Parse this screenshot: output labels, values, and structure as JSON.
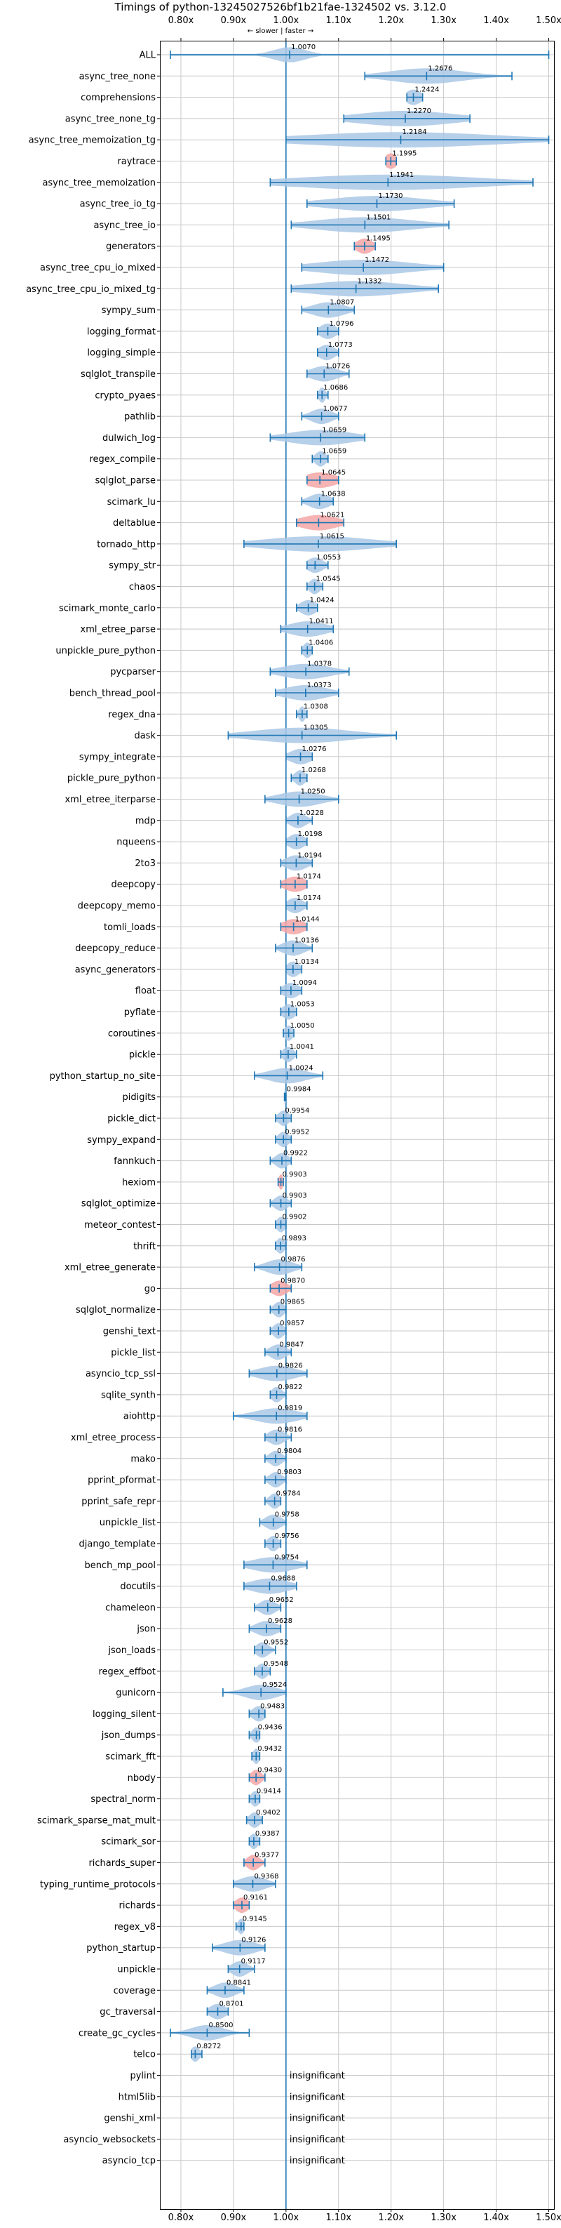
{
  "chart_data": {
    "type": "violin",
    "title": "Timings of python-13245027526bf1b21fae-1324502 vs. 3.12.0",
    "direction_label": "← slower | faster →",
    "xlabel": "",
    "ylabel": "",
    "xlim": [
      0.76,
      1.51
    ],
    "x_ticks": [
      0.8,
      0.9,
      1.0,
      1.1,
      1.2,
      1.3,
      1.4,
      1.5
    ],
    "x_tick_labels": [
      "0.80x",
      "0.90x",
      "1.00x",
      "1.10x",
      "1.20x",
      "1.30x",
      "1.40x",
      "1.50x"
    ],
    "grid": true,
    "insignificant_label": "insignificant",
    "colors": {
      "violin": "#aac8e6",
      "highlight": "#f4a6a6",
      "whisker": "#1f77b4",
      "reference": "#1f77b4"
    },
    "benchmarks": [
      {
        "name": "ALL",
        "mean": 1.007,
        "min": 0.78,
        "max": 1.5,
        "spread": 0.03,
        "label": "1.0070"
      },
      {
        "name": "async_tree_none",
        "mean": 1.2676,
        "min": 1.15,
        "max": 1.43,
        "spread": 0.07,
        "label": "1.2676"
      },
      {
        "name": "comprehensions",
        "mean": 1.2424,
        "min": 1.23,
        "max": 1.26,
        "spread": 0.015,
        "label": "1.2424"
      },
      {
        "name": "async_tree_none_tg",
        "mean": 1.227,
        "min": 1.11,
        "max": 1.35,
        "spread": 0.09,
        "label": "1.2270"
      },
      {
        "name": "async_tree_memoization_tg",
        "mean": 1.2184,
        "min": 1.0,
        "max": 1.5,
        "spread": 0.18,
        "label": "1.2184"
      },
      {
        "name": "raytrace",
        "mean": 1.1995,
        "min": 1.19,
        "max": 1.21,
        "spread": 0.012,
        "label": "1.1995",
        "highlight": true
      },
      {
        "name": "async_tree_memoization",
        "mean": 1.1941,
        "min": 0.97,
        "max": 1.47,
        "spread": 0.17,
        "label": "1.1941"
      },
      {
        "name": "async_tree_io_tg",
        "mean": 1.173,
        "min": 1.04,
        "max": 1.32,
        "spread": 0.09,
        "label": "1.1730"
      },
      {
        "name": "async_tree_io",
        "mean": 1.1501,
        "min": 1.01,
        "max": 1.31,
        "spread": 0.09,
        "label": "1.1501"
      },
      {
        "name": "generators",
        "mean": 1.1495,
        "min": 1.13,
        "max": 1.17,
        "spread": 0.015,
        "label": "1.1495",
        "highlight": true
      },
      {
        "name": "async_tree_cpu_io_mixed",
        "mean": 1.1472,
        "min": 1.03,
        "max": 1.3,
        "spread": 0.09,
        "label": "1.1472"
      },
      {
        "name": "async_tree_cpu_io_mixed_tg",
        "mean": 1.1332,
        "min": 1.01,
        "max": 1.29,
        "spread": 0.09,
        "label": "1.1332"
      },
      {
        "name": "sympy_sum",
        "mean": 1.0807,
        "min": 1.03,
        "max": 1.13,
        "spread": 0.03,
        "label": "1.0807"
      },
      {
        "name": "logging_format",
        "mean": 1.0796,
        "min": 1.06,
        "max": 1.1,
        "spread": 0.015,
        "label": "1.0796"
      },
      {
        "name": "logging_simple",
        "mean": 1.0773,
        "min": 1.06,
        "max": 1.1,
        "spread": 0.015,
        "label": "1.0773"
      },
      {
        "name": "sqlglot_transpile",
        "mean": 1.0726,
        "min": 1.04,
        "max": 1.12,
        "spread": 0.025,
        "label": "1.0726"
      },
      {
        "name": "crypto_pyaes",
        "mean": 1.0686,
        "min": 1.06,
        "max": 1.08,
        "spread": 0.006,
        "label": "1.0686"
      },
      {
        "name": "pathlib",
        "mean": 1.0677,
        "min": 1.03,
        "max": 1.1,
        "spread": 0.02,
        "label": "1.0677"
      },
      {
        "name": "dulwich_log",
        "mean": 1.0659,
        "min": 0.97,
        "max": 1.15,
        "spread": 0.06,
        "label": "1.0659"
      },
      {
        "name": "regex_compile",
        "mean": 1.0659,
        "min": 1.05,
        "max": 1.08,
        "spread": 0.01,
        "label": "1.0659"
      },
      {
        "name": "sqlglot_parse",
        "mean": 1.0645,
        "min": 1.04,
        "max": 1.1,
        "spread": 0.03,
        "label": "1.0645",
        "highlight": true
      },
      {
        "name": "scimark_lu",
        "mean": 1.0638,
        "min": 1.03,
        "max": 1.09,
        "spread": 0.02,
        "label": "1.0638"
      },
      {
        "name": "deltablue",
        "mean": 1.0621,
        "min": 1.02,
        "max": 1.11,
        "spread": 0.035,
        "label": "1.0621",
        "highlight": true
      },
      {
        "name": "tornado_http",
        "mean": 1.0615,
        "min": 0.92,
        "max": 1.21,
        "spread": 0.1,
        "label": "1.0615"
      },
      {
        "name": "sympy_str",
        "mean": 1.0553,
        "min": 1.04,
        "max": 1.08,
        "spread": 0.015,
        "label": "1.0553"
      },
      {
        "name": "chaos",
        "mean": 1.0545,
        "min": 1.04,
        "max": 1.07,
        "spread": 0.01,
        "label": "1.0545"
      },
      {
        "name": "scimark_monte_carlo",
        "mean": 1.0424,
        "min": 1.02,
        "max": 1.06,
        "spread": 0.015,
        "label": "1.0424"
      },
      {
        "name": "xml_etree_parse",
        "mean": 1.0411,
        "min": 0.99,
        "max": 1.09,
        "spread": 0.035,
        "label": "1.0411"
      },
      {
        "name": "unpickle_pure_python",
        "mean": 1.0406,
        "min": 1.03,
        "max": 1.05,
        "spread": 0.008,
        "label": "1.0406"
      },
      {
        "name": "pycparser",
        "mean": 1.0378,
        "min": 0.97,
        "max": 1.12,
        "spread": 0.045,
        "label": "1.0378"
      },
      {
        "name": "bench_thread_pool",
        "mean": 1.0373,
        "min": 0.98,
        "max": 1.1,
        "spread": 0.04,
        "label": "1.0373"
      },
      {
        "name": "regex_dna",
        "mean": 1.0308,
        "min": 1.02,
        "max": 1.04,
        "spread": 0.006,
        "label": "1.0308"
      },
      {
        "name": "dask",
        "mean": 1.0305,
        "min": 0.89,
        "max": 1.21,
        "spread": 0.09,
        "label": "1.0305"
      },
      {
        "name": "sympy_integrate",
        "mean": 1.0276,
        "min": 1.0,
        "max": 1.05,
        "spread": 0.02,
        "label": "1.0276"
      },
      {
        "name": "pickle_pure_python",
        "mean": 1.0268,
        "min": 1.01,
        "max": 1.04,
        "spread": 0.01,
        "label": "1.0268"
      },
      {
        "name": "xml_etree_iterparse",
        "mean": 1.025,
        "min": 0.96,
        "max": 1.1,
        "spread": 0.04,
        "label": "1.0250"
      },
      {
        "name": "mdp",
        "mean": 1.0228,
        "min": 1.0,
        "max": 1.05,
        "spread": 0.015,
        "label": "1.0228"
      },
      {
        "name": "nqueens",
        "mean": 1.0198,
        "min": 1.0,
        "max": 1.04,
        "spread": 0.015,
        "label": "1.0198"
      },
      {
        "name": "2to3",
        "mean": 1.0194,
        "min": 0.99,
        "max": 1.05,
        "spread": 0.02,
        "label": "1.0194"
      },
      {
        "name": "deepcopy",
        "mean": 1.0174,
        "min": 0.99,
        "max": 1.04,
        "spread": 0.02,
        "label": "1.0174",
        "highlight": true
      },
      {
        "name": "deepcopy_memo",
        "mean": 1.0174,
        "min": 1.0,
        "max": 1.04,
        "spread": 0.015,
        "label": "1.0174"
      },
      {
        "name": "tomli_loads",
        "mean": 1.0144,
        "min": 0.99,
        "max": 1.04,
        "spread": 0.02,
        "label": "1.0144",
        "highlight": true
      },
      {
        "name": "deepcopy_reduce",
        "mean": 1.0136,
        "min": 0.98,
        "max": 1.05,
        "spread": 0.02,
        "label": "1.0136"
      },
      {
        "name": "async_generators",
        "mean": 1.0134,
        "min": 1.0,
        "max": 1.03,
        "spread": 0.012,
        "label": "1.0134"
      },
      {
        "name": "float",
        "mean": 1.0094,
        "min": 0.99,
        "max": 1.03,
        "spread": 0.015,
        "label": "1.0094"
      },
      {
        "name": "pyflate",
        "mean": 1.0053,
        "min": 0.99,
        "max": 1.02,
        "spread": 0.012,
        "label": "1.0053"
      },
      {
        "name": "coroutines",
        "mean": 1.005,
        "min": 0.995,
        "max": 1.015,
        "spread": 0.008,
        "label": "1.0050"
      },
      {
        "name": "pickle",
        "mean": 1.0041,
        "min": 0.99,
        "max": 1.02,
        "spread": 0.01,
        "label": "1.0041"
      },
      {
        "name": "python_startup_no_site",
        "mean": 1.0024,
        "min": 0.94,
        "max": 1.07,
        "spread": 0.035,
        "label": "1.0024"
      },
      {
        "name": "pidigits",
        "mean": 0.9984,
        "min": 0.997,
        "max": 1.0,
        "spread": 0.002,
        "label": "0.9984"
      },
      {
        "name": "pickle_dict",
        "mean": 0.9954,
        "min": 0.98,
        "max": 1.01,
        "spread": 0.01,
        "label": "0.9954"
      },
      {
        "name": "sympy_expand",
        "mean": 0.9952,
        "min": 0.98,
        "max": 1.01,
        "spread": 0.01,
        "label": "0.9952"
      },
      {
        "name": "fannkuch",
        "mean": 0.9922,
        "min": 0.97,
        "max": 1.01,
        "spread": 0.012,
        "label": "0.9922"
      },
      {
        "name": "hexiom",
        "mean": 0.9903,
        "min": 0.985,
        "max": 0.995,
        "spread": 0.004,
        "label": "0.9903",
        "highlight": true
      },
      {
        "name": "sqlglot_optimize",
        "mean": 0.9903,
        "min": 0.97,
        "max": 1.01,
        "spread": 0.012,
        "label": "0.9903"
      },
      {
        "name": "meteor_contest",
        "mean": 0.9902,
        "min": 0.98,
        "max": 1.0,
        "spread": 0.008,
        "label": "0.9902"
      },
      {
        "name": "thrift",
        "mean": 0.9893,
        "min": 0.98,
        "max": 1.0,
        "spread": 0.008,
        "label": "0.9893"
      },
      {
        "name": "xml_etree_generate",
        "mean": 0.9876,
        "min": 0.94,
        "max": 1.03,
        "spread": 0.025,
        "label": "0.9876"
      },
      {
        "name": "go",
        "mean": 0.987,
        "min": 0.97,
        "max": 1.01,
        "spread": 0.015,
        "label": "0.9870",
        "highlight": true
      },
      {
        "name": "sqlglot_normalize",
        "mean": 0.9865,
        "min": 0.97,
        "max": 1.0,
        "spread": 0.01,
        "label": "0.9865"
      },
      {
        "name": "genshi_text",
        "mean": 0.9857,
        "min": 0.97,
        "max": 1.0,
        "spread": 0.01,
        "label": "0.9857"
      },
      {
        "name": "pickle_list",
        "mean": 0.9847,
        "min": 0.96,
        "max": 1.01,
        "spread": 0.015,
        "label": "0.9847"
      },
      {
        "name": "asyncio_tcp_ssl",
        "mean": 0.9826,
        "min": 0.93,
        "max": 1.04,
        "spread": 0.035,
        "label": "0.9826"
      },
      {
        "name": "sqlite_synth",
        "mean": 0.9822,
        "min": 0.97,
        "max": 1.0,
        "spread": 0.01,
        "label": "0.9822"
      },
      {
        "name": "aiohttp",
        "mean": 0.9819,
        "min": 0.9,
        "max": 1.04,
        "spread": 0.04,
        "label": "0.9819"
      },
      {
        "name": "xml_etree_process",
        "mean": 0.9816,
        "min": 0.96,
        "max": 1.01,
        "spread": 0.015,
        "label": "0.9816"
      },
      {
        "name": "mako",
        "mean": 0.9804,
        "min": 0.96,
        "max": 1.0,
        "spread": 0.012,
        "label": "0.9804"
      },
      {
        "name": "pprint_pformat",
        "mean": 0.9803,
        "min": 0.96,
        "max": 1.0,
        "spread": 0.012,
        "label": "0.9803"
      },
      {
        "name": "pprint_safe_repr",
        "mean": 0.9784,
        "min": 0.96,
        "max": 0.99,
        "spread": 0.01,
        "label": "0.9784"
      },
      {
        "name": "unpickle_list",
        "mean": 0.9758,
        "min": 0.95,
        "max": 1.0,
        "spread": 0.015,
        "label": "0.9758"
      },
      {
        "name": "django_template",
        "mean": 0.9756,
        "min": 0.96,
        "max": 0.99,
        "spread": 0.01,
        "label": "0.9756"
      },
      {
        "name": "bench_mp_pool",
        "mean": 0.9754,
        "min": 0.92,
        "max": 1.04,
        "spread": 0.04,
        "label": "0.9754"
      },
      {
        "name": "docutils",
        "mean": 0.9688,
        "min": 0.92,
        "max": 1.02,
        "spread": 0.035,
        "label": "0.9688"
      },
      {
        "name": "chameleon",
        "mean": 0.9652,
        "min": 0.94,
        "max": 0.99,
        "spread": 0.015,
        "label": "0.9652"
      },
      {
        "name": "json",
        "mean": 0.9628,
        "min": 0.93,
        "max": 0.99,
        "spread": 0.02,
        "label": "0.9628"
      },
      {
        "name": "json_loads",
        "mean": 0.9552,
        "min": 0.94,
        "max": 0.98,
        "spread": 0.012,
        "label": "0.9552"
      },
      {
        "name": "regex_effbot",
        "mean": 0.9548,
        "min": 0.94,
        "max": 0.97,
        "spread": 0.01,
        "label": "0.9548"
      },
      {
        "name": "gunicorn",
        "mean": 0.9524,
        "min": 0.88,
        "max": 1.0,
        "spread": 0.03,
        "label": "0.9524"
      },
      {
        "name": "logging_silent",
        "mean": 0.9483,
        "min": 0.93,
        "max": 0.96,
        "spread": 0.012,
        "label": "0.9483"
      },
      {
        "name": "json_dumps",
        "mean": 0.9436,
        "min": 0.93,
        "max": 0.95,
        "spread": 0.008,
        "label": "0.9436"
      },
      {
        "name": "scimark_fft",
        "mean": 0.9432,
        "min": 0.935,
        "max": 0.95,
        "spread": 0.006,
        "label": "0.9432"
      },
      {
        "name": "nbody",
        "mean": 0.943,
        "min": 0.93,
        "max": 0.96,
        "spread": 0.01,
        "label": "0.9430",
        "highlight": true
      },
      {
        "name": "spectral_norm",
        "mean": 0.9414,
        "min": 0.93,
        "max": 0.95,
        "spread": 0.008,
        "label": "0.9414"
      },
      {
        "name": "scimark_sparse_mat_mult",
        "mean": 0.9402,
        "min": 0.925,
        "max": 0.955,
        "spread": 0.01,
        "label": "0.9402"
      },
      {
        "name": "scimark_sor",
        "mean": 0.9387,
        "min": 0.93,
        "max": 0.95,
        "spread": 0.008,
        "label": "0.9387"
      },
      {
        "name": "richards_super",
        "mean": 0.9377,
        "min": 0.92,
        "max": 0.96,
        "spread": 0.012,
        "label": "0.9377",
        "highlight": true
      },
      {
        "name": "typing_runtime_protocols",
        "mean": 0.9368,
        "min": 0.9,
        "max": 0.98,
        "spread": 0.025,
        "label": "0.9368"
      },
      {
        "name": "richards",
        "mean": 0.9161,
        "min": 0.9,
        "max": 0.93,
        "spread": 0.012,
        "label": "0.9161",
        "highlight": true
      },
      {
        "name": "regex_v8",
        "mean": 0.9145,
        "min": 0.905,
        "max": 0.92,
        "spread": 0.006,
        "label": "0.9145"
      },
      {
        "name": "python_startup",
        "mean": 0.9126,
        "min": 0.86,
        "max": 0.96,
        "spread": 0.03,
        "label": "0.9126"
      },
      {
        "name": "unpickle",
        "mean": 0.9117,
        "min": 0.89,
        "max": 0.94,
        "spread": 0.015,
        "label": "0.9117"
      },
      {
        "name": "coverage",
        "mean": 0.8841,
        "min": 0.85,
        "max": 0.92,
        "spread": 0.02,
        "label": "0.8841"
      },
      {
        "name": "gc_traversal",
        "mean": 0.8701,
        "min": 0.85,
        "max": 0.89,
        "spread": 0.015,
        "label": "0.8701"
      },
      {
        "name": "create_gc_cycles",
        "mean": 0.85,
        "min": 0.78,
        "max": 0.93,
        "spread": 0.03,
        "label": "0.8500"
      },
      {
        "name": "telco",
        "mean": 0.8272,
        "min": 0.82,
        "max": 0.84,
        "spread": 0.008,
        "label": "0.8272"
      },
      {
        "name": "pylint",
        "insignificant": true
      },
      {
        "name": "html5lib",
        "insignificant": true
      },
      {
        "name": "genshi_xml",
        "insignificant": true
      },
      {
        "name": "asyncio_websockets",
        "insignificant": true
      },
      {
        "name": "asyncio_tcp",
        "insignificant": true
      }
    ]
  }
}
